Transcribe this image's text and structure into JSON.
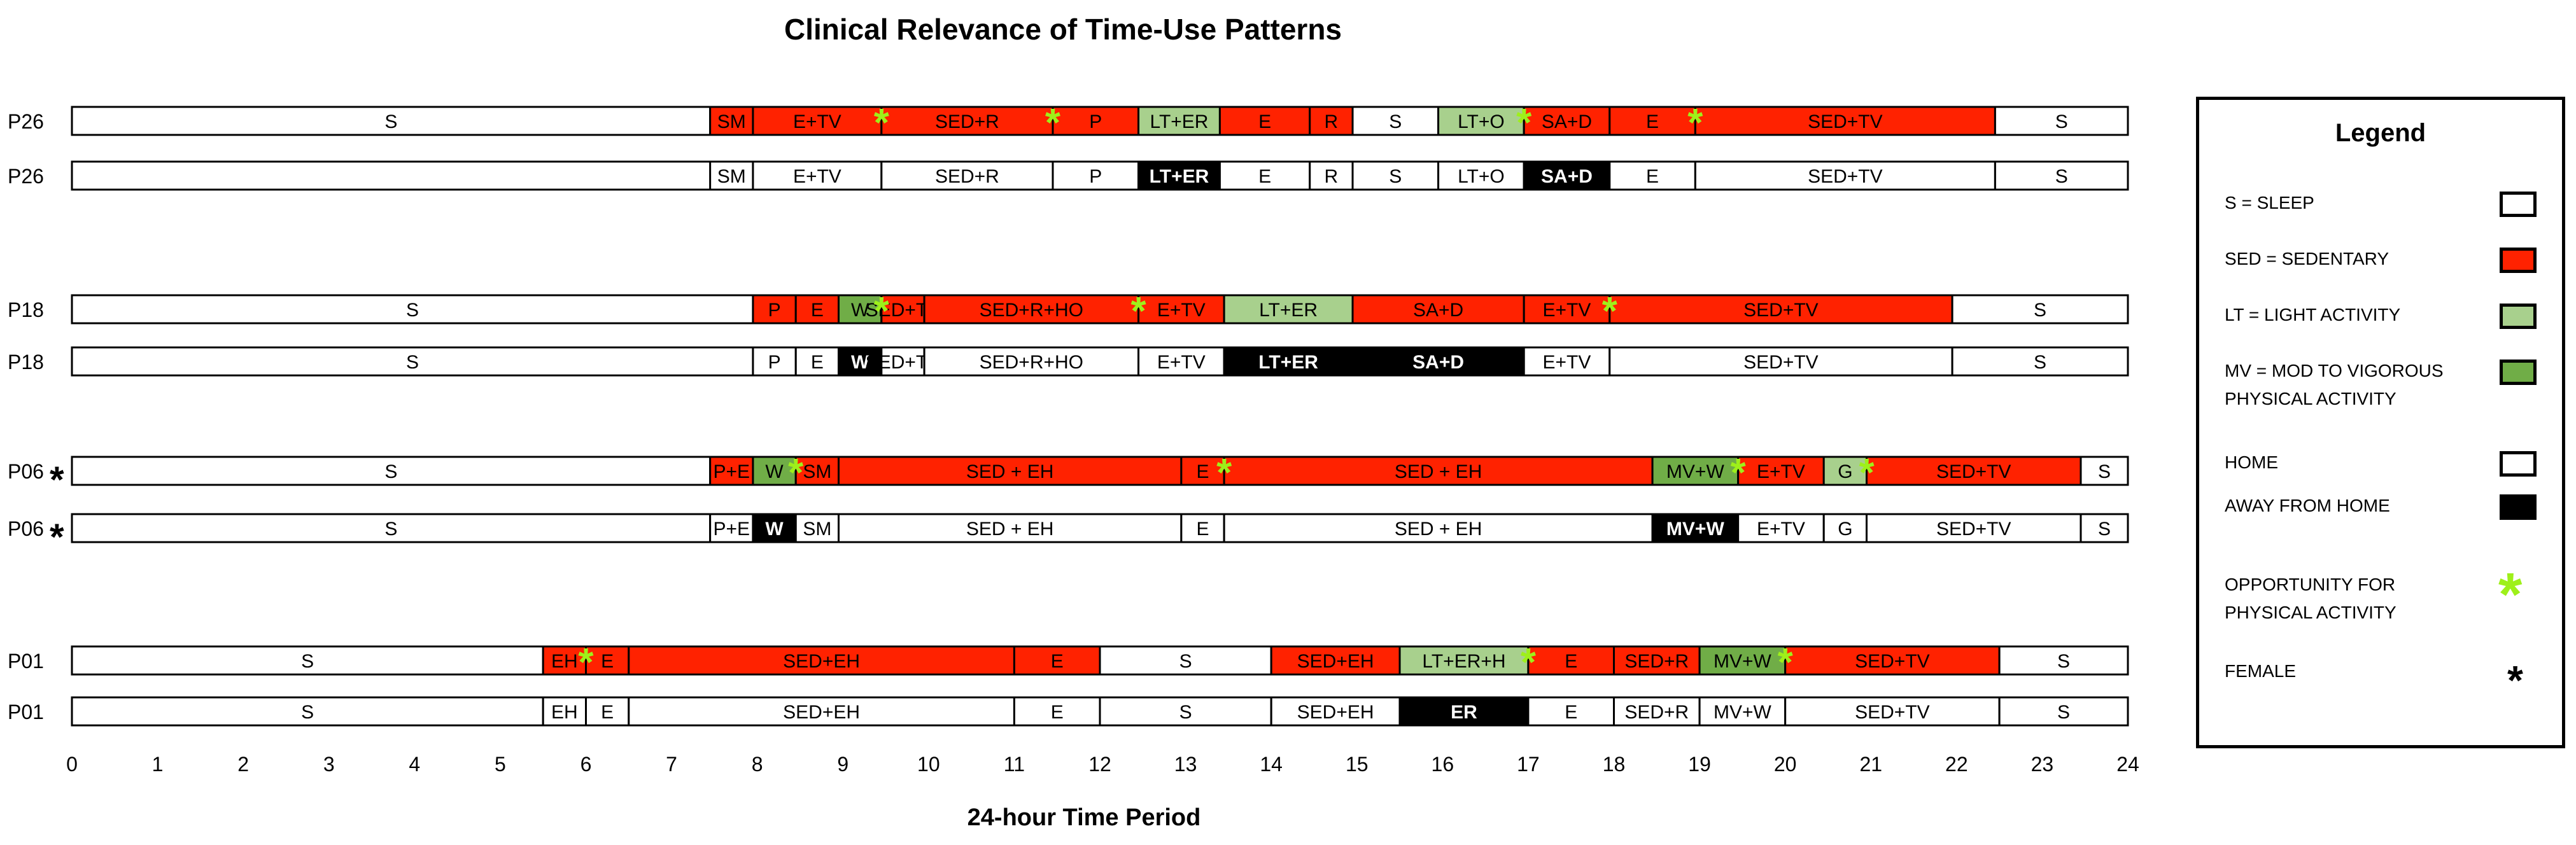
{
  "chart_data": {
    "type": "timeline",
    "title": "Clinical Relevance of Time-Use Patterns",
    "xlabel": "24-hour Time Period",
    "xlim": [
      0,
      24
    ],
    "xticks": [
      "0",
      "1",
      "2",
      "3",
      "4",
      "5",
      "6",
      "7",
      "8",
      "9",
      "10",
      "11",
      "12",
      "13",
      "14",
      "15",
      "16",
      "17",
      "18",
      "19",
      "20",
      "21",
      "22",
      "23",
      "24"
    ],
    "rows": [
      {
        "label": "P26",
        "female": false,
        "kind": "activity",
        "segments": [
          {
            "s": 0,
            "e": 7.45,
            "t": "S",
            "c": "sleep"
          },
          {
            "s": 7.45,
            "e": 7.95,
            "t": "SM",
            "c": "sed"
          },
          {
            "s": 7.95,
            "e": 9.45,
            "t": "E+TV",
            "c": "sed"
          },
          {
            "s": 9.45,
            "e": 11.45,
            "t": "SED+R",
            "c": "sed"
          },
          {
            "s": 11.45,
            "e": 12.45,
            "t": "P",
            "c": "sed"
          },
          {
            "s": 12.45,
            "e": 13.4,
            "t": "LT+ER",
            "c": "lt"
          },
          {
            "s": 13.4,
            "e": 14.45,
            "t": "E",
            "c": "sed"
          },
          {
            "s": 14.45,
            "e": 14.95,
            "t": "R",
            "c": "sed"
          },
          {
            "s": 14.95,
            "e": 15.95,
            "t": "S",
            "c": "sleep"
          },
          {
            "s": 15.95,
            "e": 16.95,
            "t": "LT+O",
            "c": "lt"
          },
          {
            "s": 16.95,
            "e": 17.95,
            "t": "SA+D",
            "c": "sed"
          },
          {
            "s": 17.95,
            "e": 18.95,
            "t": "E",
            "c": "sed"
          },
          {
            "s": 18.95,
            "e": 22.45,
            "t": "SED+TV",
            "c": "sed"
          },
          {
            "s": 22.45,
            "e": 24,
            "t": "S",
            "c": "sleep"
          }
        ],
        "opportunities": [
          9.45,
          11.45,
          16.95,
          18.95
        ]
      },
      {
        "label": "P26",
        "female": false,
        "kind": "location",
        "segments": [
          {
            "s": 7.45,
            "e": 7.95,
            "t": "SM",
            "c": "home"
          },
          {
            "s": 7.95,
            "e": 9.45,
            "t": "E+TV",
            "c": "home"
          },
          {
            "s": 9.45,
            "e": 11.45,
            "t": "SED+R",
            "c": "home"
          },
          {
            "s": 11.45,
            "e": 12.45,
            "t": "P",
            "c": "home"
          },
          {
            "s": 12.45,
            "e": 13.4,
            "t": "LT+ER",
            "c": "away"
          },
          {
            "s": 13.4,
            "e": 14.45,
            "t": "E",
            "c": "home"
          },
          {
            "s": 14.45,
            "e": 14.95,
            "t": "R",
            "c": "home"
          },
          {
            "s": 14.95,
            "e": 15.95,
            "t": "S",
            "c": "home"
          },
          {
            "s": 15.95,
            "e": 16.95,
            "t": "LT+O",
            "c": "home"
          },
          {
            "s": 16.95,
            "e": 17.95,
            "t": "SA+D",
            "c": "away"
          },
          {
            "s": 17.95,
            "e": 18.95,
            "t": "E",
            "c": "home"
          },
          {
            "s": 18.95,
            "e": 22.45,
            "t": "SED+TV",
            "c": "home"
          },
          {
            "s": 22.45,
            "e": 24,
            "t": "S",
            "c": "home"
          }
        ],
        "opportunities": []
      },
      {
        "label": "P18",
        "female": false,
        "kind": "activity",
        "segments": [
          {
            "s": 0,
            "e": 7.95,
            "t": "S",
            "c": "sleep"
          },
          {
            "s": 7.95,
            "e": 8.45,
            "t": "P",
            "c": "sed"
          },
          {
            "s": 8.45,
            "e": 8.95,
            "t": "E",
            "c": "sed"
          },
          {
            "s": 8.95,
            "e": 9.45,
            "t": "W",
            "c": "mv"
          },
          {
            "s": 9.45,
            "e": 9.95,
            "t": "SED+TV",
            "c": "sed"
          },
          {
            "s": 9.95,
            "e": 12.45,
            "t": "SED+R+HO",
            "c": "sed"
          },
          {
            "s": 12.45,
            "e": 13.45,
            "t": "E+TV",
            "c": "sed"
          },
          {
            "s": 13.45,
            "e": 14.95,
            "t": "LT+ER",
            "c": "lt"
          },
          {
            "s": 14.95,
            "e": 16.95,
            "t": "SA+D",
            "c": "sed"
          },
          {
            "s": 16.95,
            "e": 17.95,
            "t": "E+TV",
            "c": "sed"
          },
          {
            "s": 17.95,
            "e": 21.95,
            "t": "SED+TV",
            "c": "sed"
          },
          {
            "s": 21.95,
            "e": 24,
            "t": "S",
            "c": "sleep"
          }
        ],
        "opportunities": [
          9.45,
          12.45,
          17.95
        ]
      },
      {
        "label": "P18",
        "female": false,
        "kind": "location",
        "segments": [
          {
            "s": 0,
            "e": 7.95,
            "t": "S",
            "c": "home"
          },
          {
            "s": 7.95,
            "e": 8.45,
            "t": "P",
            "c": "home"
          },
          {
            "s": 8.45,
            "e": 8.95,
            "t": "E",
            "c": "home"
          },
          {
            "s": 8.95,
            "e": 9.45,
            "t": "W",
            "c": "away"
          },
          {
            "s": 9.45,
            "e": 9.95,
            "t": "SED+TV",
            "c": "home"
          },
          {
            "s": 9.95,
            "e": 12.45,
            "t": "SED+R+HO",
            "c": "home"
          },
          {
            "s": 12.45,
            "e": 13.45,
            "t": "E+TV",
            "c": "home"
          },
          {
            "s": 13.45,
            "e": 14.95,
            "t": "LT+ER",
            "c": "away"
          },
          {
            "s": 14.95,
            "e": 16.95,
            "t": "SA+D",
            "c": "away"
          },
          {
            "s": 16.95,
            "e": 17.95,
            "t": "E+TV",
            "c": "home"
          },
          {
            "s": 17.95,
            "e": 21.95,
            "t": "SED+TV",
            "c": "home"
          },
          {
            "s": 21.95,
            "e": 24,
            "t": "S",
            "c": "home"
          }
        ],
        "opportunities": []
      },
      {
        "label": "P06",
        "female": true,
        "kind": "activity",
        "segments": [
          {
            "s": 0,
            "e": 7.45,
            "t": "S",
            "c": "sleep"
          },
          {
            "s": 7.45,
            "e": 7.95,
            "t": "P+E",
            "c": "sed"
          },
          {
            "s": 7.95,
            "e": 8.45,
            "t": "W",
            "c": "mv"
          },
          {
            "s": 8.45,
            "e": 8.95,
            "t": "SM",
            "c": "sed"
          },
          {
            "s": 8.95,
            "e": 12.95,
            "t": "SED + EH",
            "c": "sed"
          },
          {
            "s": 12.95,
            "e": 13.45,
            "t": "E",
            "c": "sed"
          },
          {
            "s": 13.45,
            "e": 18.45,
            "t": "SED + EH",
            "c": "sed"
          },
          {
            "s": 18.45,
            "e": 19.45,
            "t": "MV+W",
            "c": "mv"
          },
          {
            "s": 19.45,
            "e": 20.45,
            "t": "E+TV",
            "c": "sed"
          },
          {
            "s": 20.45,
            "e": 20.95,
            "t": "G",
            "c": "lt"
          },
          {
            "s": 20.95,
            "e": 23.45,
            "t": "SED+TV",
            "c": "sed"
          },
          {
            "s": 23.45,
            "e": 24,
            "t": "S",
            "c": "sleep"
          }
        ],
        "opportunities": [
          8.45,
          13.45,
          19.45,
          20.95
        ]
      },
      {
        "label": "P06",
        "female": true,
        "kind": "location",
        "segments": [
          {
            "s": 0,
            "e": 7.45,
            "t": "S",
            "c": "home"
          },
          {
            "s": 7.45,
            "e": 7.95,
            "t": "P+E",
            "c": "home"
          },
          {
            "s": 7.95,
            "e": 8.45,
            "t": "W",
            "c": "away"
          },
          {
            "s": 8.45,
            "e": 8.95,
            "t": "SM",
            "c": "home"
          },
          {
            "s": 8.95,
            "e": 12.95,
            "t": "SED + EH",
            "c": "home"
          },
          {
            "s": 12.95,
            "e": 13.45,
            "t": "E",
            "c": "home"
          },
          {
            "s": 13.45,
            "e": 18.45,
            "t": "SED + EH",
            "c": "home"
          },
          {
            "s": 18.45,
            "e": 19.45,
            "t": "MV+W",
            "c": "away"
          },
          {
            "s": 19.45,
            "e": 20.45,
            "t": "E+TV",
            "c": "home"
          },
          {
            "s": 20.45,
            "e": 20.95,
            "t": "G",
            "c": "home"
          },
          {
            "s": 20.95,
            "e": 23.45,
            "t": "SED+TV",
            "c": "home"
          },
          {
            "s": 23.45,
            "e": 24,
            "t": "S",
            "c": "home"
          }
        ],
        "opportunities": []
      },
      {
        "label": "P01",
        "female": false,
        "kind": "activity",
        "segments": [
          {
            "s": 0,
            "e": 5.5,
            "t": "S",
            "c": "sleep"
          },
          {
            "s": 5.5,
            "e": 6.0,
            "t": "EH",
            "c": "sed"
          },
          {
            "s": 6.0,
            "e": 6.5,
            "t": "E",
            "c": "sed"
          },
          {
            "s": 6.5,
            "e": 11.0,
            "t": "SED+EH",
            "c": "sed"
          },
          {
            "s": 11.0,
            "e": 12.0,
            "t": "E",
            "c": "sed"
          },
          {
            "s": 12.0,
            "e": 14.0,
            "t": "S",
            "c": "sleep"
          },
          {
            "s": 14.0,
            "e": 15.5,
            "t": "SED+EH",
            "c": "sed"
          },
          {
            "s": 15.5,
            "e": 17.0,
            "t": "LT+ER+H",
            "c": "lt"
          },
          {
            "s": 17.0,
            "e": 18.0,
            "t": "E",
            "c": "sed"
          },
          {
            "s": 18.0,
            "e": 19.0,
            "t": "SED+R",
            "c": "sed"
          },
          {
            "s": 19.0,
            "e": 20.0,
            "t": "MV+W",
            "c": "mv"
          },
          {
            "s": 20.0,
            "e": 22.5,
            "t": "SED+TV",
            "c": "sed"
          },
          {
            "s": 22.5,
            "e": 24,
            "t": "S",
            "c": "sleep"
          }
        ],
        "opportunities": [
          6.0,
          17.0,
          20.0
        ]
      },
      {
        "label": "P01",
        "female": false,
        "kind": "location",
        "segments": [
          {
            "s": 0,
            "e": 5.5,
            "t": "S",
            "c": "home"
          },
          {
            "s": 5.5,
            "e": 6.0,
            "t": "EH",
            "c": "home"
          },
          {
            "s": 6.0,
            "e": 6.5,
            "t": "E",
            "c": "home"
          },
          {
            "s": 6.5,
            "e": 11.0,
            "t": "SED+EH",
            "c": "home"
          },
          {
            "s": 11.0,
            "e": 12.0,
            "t": "E",
            "c": "home"
          },
          {
            "s": 12.0,
            "e": 14.0,
            "t": "S",
            "c": "home"
          },
          {
            "s": 14.0,
            "e": 15.5,
            "t": "SED+EH",
            "c": "home"
          },
          {
            "s": 15.5,
            "e": 17.0,
            "t": "ER",
            "c": "away"
          },
          {
            "s": 17.0,
            "e": 18.0,
            "t": "E",
            "c": "home"
          },
          {
            "s": 18.0,
            "e": 19.0,
            "t": "SED+R",
            "c": "home"
          },
          {
            "s": 19.0,
            "e": 20.0,
            "t": "MV+W",
            "c": "home"
          },
          {
            "s": 20.0,
            "e": 22.5,
            "t": "SED+TV",
            "c": "home"
          },
          {
            "s": 22.5,
            "e": 24,
            "t": "S",
            "c": "home"
          }
        ],
        "opportunities": []
      }
    ]
  },
  "colors": {
    "sleep": "#ffffff",
    "sed": "#ff2200",
    "lt": "#a8d08d",
    "mv": "#70ad47",
    "home": "#ffffff",
    "away": "#000000",
    "opportunity": "#9ef01a",
    "border": "#000000"
  },
  "legend": {
    "title": "Legend",
    "items": [
      {
        "text": "S = SLEEP",
        "swatch": "sleep"
      },
      {
        "text": "SED = SEDENTARY",
        "swatch": "sed"
      },
      {
        "text": "LT = LIGHT ACTIVITY",
        "swatch": "lt"
      },
      {
        "text": "MV = MOD TO VIGOROUS\n        PHYSICAL ACTIVITY",
        "swatch": "mv"
      },
      {
        "text": "HOME",
        "swatch": "home"
      },
      {
        "text": "AWAY FROM HOME",
        "swatch": "away"
      },
      {
        "text": "OPPORTUNITY FOR\nPHYSICAL ACTIVITY",
        "swatch": "opportunity"
      },
      {
        "text": "FEMALE",
        "swatch": "female"
      }
    ],
    "star_glyph": "*"
  }
}
